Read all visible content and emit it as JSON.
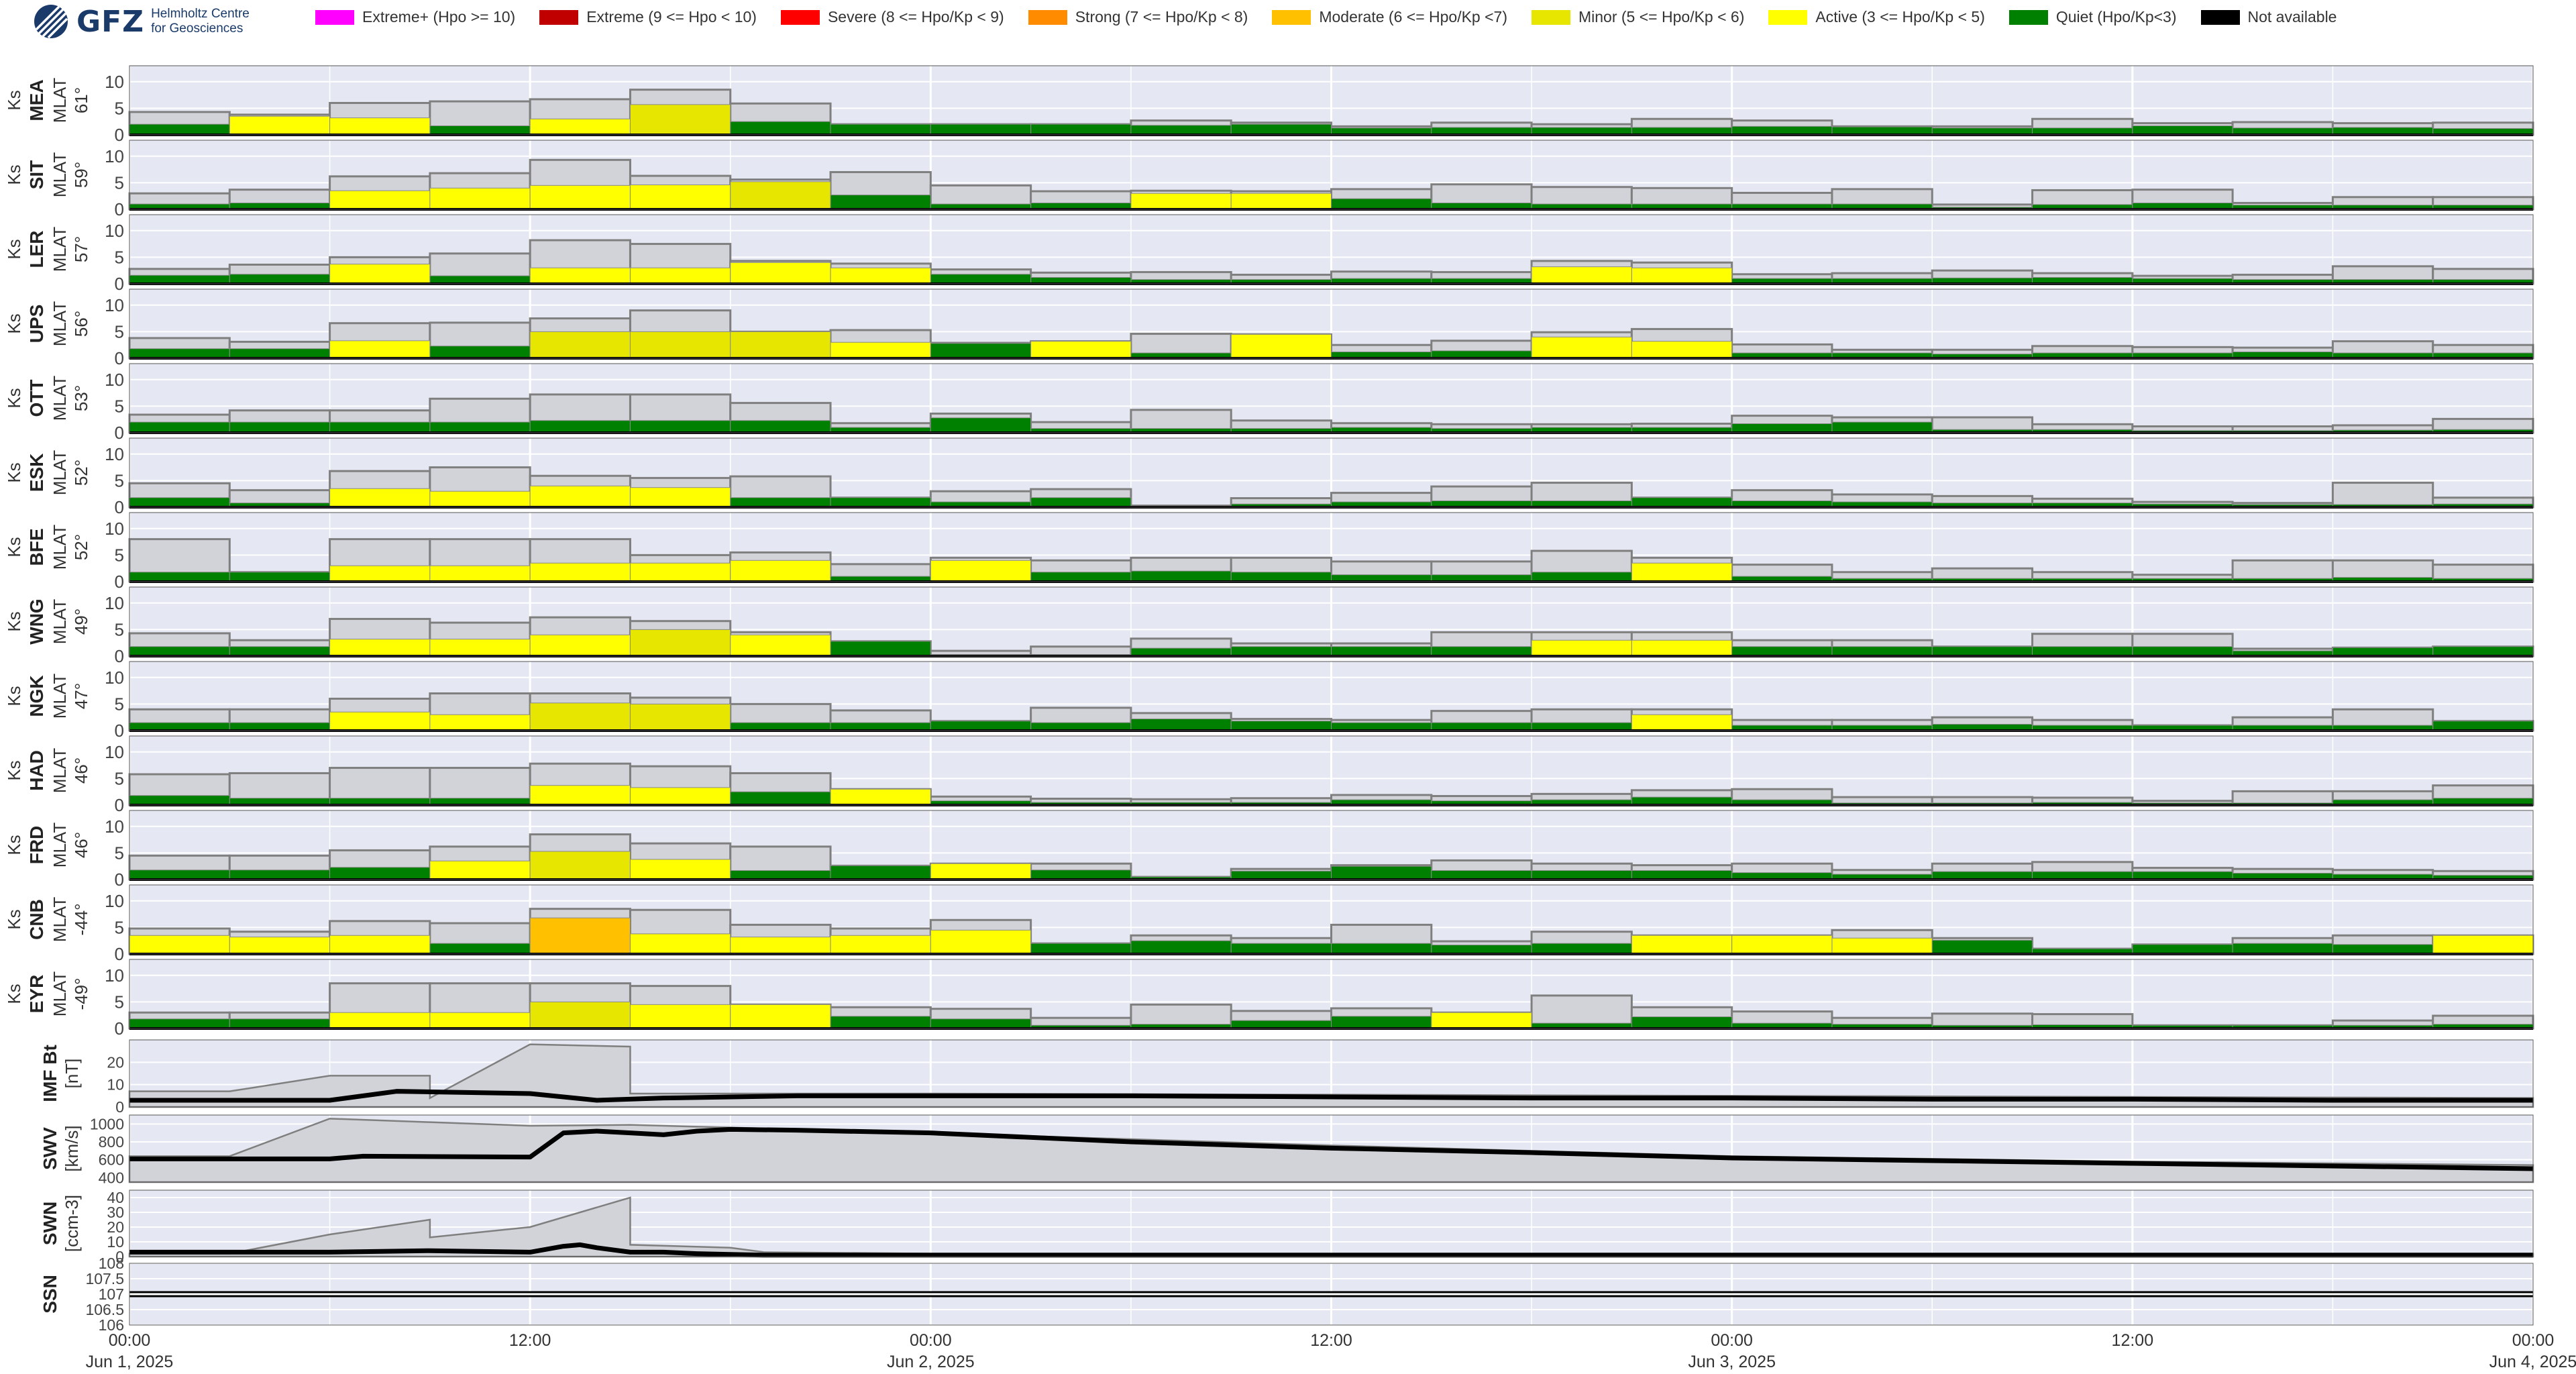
{
  "header": {
    "logo_name": "GFZ",
    "logo_line1": "Helmholtz Centre",
    "logo_line2": "for Geosciences"
  },
  "legend": [
    {
      "label": "Extreme+ (Hpo >= 10)",
      "color": "#ff00ff"
    },
    {
      "label": "Extreme (9 <= Hpo < 10)",
      "color": "#c00000"
    },
    {
      "label": "Severe (8 <= Hpo/Kp < 9)",
      "color": "#ff0000"
    },
    {
      "label": "Strong (7 <= Hpo/Kp < 8)",
      "color": "#ff8c00"
    },
    {
      "label": "Moderate (6 <= Hpo/Kp <7)",
      "color": "#ffc000"
    },
    {
      "label": "Minor (5 <= Hpo/Kp < 6)",
      "color": "#e6e600"
    },
    {
      "label": "Active (3 <= Hpo/Kp < 5)",
      "color": "#ffff00"
    },
    {
      "label": "Quiet (Hpo/Kp<3)",
      "color": "#008000"
    },
    {
      "label": "Not available",
      "color": "#000000"
    }
  ],
  "chart_data": {
    "type": "bar",
    "x_start": "2025-06-01T00:00",
    "x_end": "2025-06-04T00:00",
    "bin_hours": 3,
    "x_tick_labels": [
      "00:00",
      "12:00",
      "00:00",
      "12:00",
      "00:00",
      "12:00",
      "00:00"
    ],
    "x_tick_sublabels": [
      "Jun 1, 2025",
      "",
      "Jun 2, 2025",
      "",
      "Jun 3, 2025",
      "",
      "Jun 4, 2025"
    ],
    "ks_ylim": [
      0,
      13
    ],
    "ks_yticks": [
      0,
      5,
      10
    ],
    "stations": [
      {
        "code": "MEA",
        "mlat": "61°",
        "ylabel": "Ks",
        "sublabel": "MLAT",
        "values": [
          2.0,
          3.5,
          3.2,
          1.7,
          3.0,
          5.7,
          2.5,
          2.0,
          2.0,
          2.0,
          1.8,
          2.0,
          1.3,
          1.4,
          1.4,
          1.4,
          1.6,
          1.5,
          1.3,
          1.3,
          1.7,
          1.3,
          1.4,
          1.2
        ],
        "maxima": [
          4.3,
          3.8,
          6.0,
          6.3,
          6.7,
          8.5,
          5.9,
          2.0,
          2.0,
          2.0,
          2.7,
          2.3,
          1.6,
          2.3,
          2.0,
          3.0,
          2.7,
          1.6,
          1.6,
          3.0,
          2.2,
          2.4,
          2.2,
          2.3
        ]
      },
      {
        "code": "SIT",
        "mlat": "59°",
        "ylabel": "Ks",
        "sublabel": "MLAT",
        "values": [
          1.0,
          1.2,
          3.5,
          4.0,
          4.5,
          4.6,
          5.2,
          2.7,
          1.0,
          1.2,
          3.0,
          3.0,
          2.0,
          1.2,
          1.0,
          1.0,
          1.0,
          1.0,
          0.4,
          0.9,
          1.2,
          0.8,
          0.8,
          0.8
        ],
        "maxima": [
          3.0,
          3.7,
          6.2,
          6.8,
          9.3,
          6.3,
          5.6,
          7.0,
          4.5,
          3.4,
          3.5,
          3.4,
          3.8,
          4.7,
          4.2,
          4.0,
          3.1,
          3.8,
          0.9,
          3.6,
          3.7,
          1.2,
          2.3,
          2.3
        ]
      },
      {
        "code": "LER",
        "mlat": "57°",
        "ylabel": "Ks",
        "sublabel": "MLAT",
        "values": [
          1.6,
          1.8,
          3.7,
          1.5,
          3.0,
          3.0,
          4.0,
          3.0,
          1.8,
          1.2,
          0.8,
          0.8,
          1.0,
          1.0,
          3.2,
          3.0,
          1.0,
          1.0,
          1.1,
          1.2,
          1.0,
          0.8,
          0.8,
          0.8
        ],
        "maxima": [
          2.8,
          3.6,
          5.0,
          5.7,
          8.2,
          7.5,
          4.3,
          3.8,
          2.7,
          2.1,
          2.2,
          1.7,
          2.3,
          2.2,
          4.3,
          4.0,
          1.8,
          2.0,
          2.5,
          2.0,
          1.5,
          1.7,
          3.3,
          2.8
        ]
      },
      {
        "code": "UPS",
        "mlat": "56°",
        "ylabel": "Ks",
        "sublabel": "MLAT",
        "values": [
          1.8,
          1.8,
          3.3,
          2.3,
          5.0,
          5.0,
          5.0,
          3.0,
          2.8,
          3.2,
          1.0,
          4.5,
          1.2,
          1.4,
          4.0,
          3.2,
          1.0,
          1.0,
          0.8,
          1.0,
          1.0,
          1.2,
          1.0,
          1.0
        ],
        "maxima": [
          3.8,
          3.1,
          6.6,
          6.7,
          7.5,
          9.0,
          5.0,
          5.3,
          2.9,
          3.2,
          4.6,
          4.5,
          2.5,
          3.3,
          4.9,
          5.5,
          2.6,
          1.6,
          1.6,
          2.3,
          2.1,
          2.0,
          3.2,
          2.5
        ]
      },
      {
        "code": "OTT",
        "mlat": "53°",
        "ylabel": "Ks",
        "sublabel": "MLAT",
        "values": [
          2.0,
          2.0,
          2.0,
          2.0,
          2.3,
          2.3,
          2.3,
          1.0,
          2.8,
          0.8,
          0.8,
          0.8,
          1.0,
          0.8,
          1.0,
          1.0,
          1.7,
          2.0,
          0.6,
          0.6,
          0.4,
          0.4,
          0.5,
          0.6
        ],
        "maxima": [
          3.4,
          4.2,
          4.2,
          6.4,
          7.2,
          7.2,
          5.6,
          1.8,
          3.6,
          2.0,
          4.3,
          2.3,
          1.8,
          1.6,
          1.6,
          1.7,
          3.2,
          2.9,
          2.9,
          1.6,
          1.2,
          1.2,
          1.4,
          2.6
        ]
      },
      {
        "code": "ESK",
        "mlat": "52°",
        "ylabel": "Ks",
        "sublabel": "MLAT",
        "values": [
          1.8,
          0.8,
          3.5,
          3.0,
          4.0,
          3.7,
          1.8,
          1.8,
          1.0,
          1.8,
          0.3,
          0.6,
          1.0,
          1.2,
          1.2,
          1.8,
          1.2,
          1.0,
          0.8,
          0.8,
          0.6,
          0.5,
          0.5,
          0.6
        ],
        "maxima": [
          4.5,
          3.2,
          6.8,
          7.5,
          5.9,
          5.5,
          5.8,
          1.8,
          3.0,
          3.4,
          0.3,
          1.7,
          2.7,
          3.9,
          4.6,
          1.8,
          3.2,
          2.4,
          2.1,
          1.6,
          1.0,
          0.8,
          4.6,
          1.8
        ]
      },
      {
        "code": "BFE",
        "mlat": "52°",
        "ylabel": "Ks",
        "sublabel": "MLAT",
        "values": [
          1.8,
          1.8,
          3.0,
          3.0,
          3.5,
          3.5,
          4.0,
          1.0,
          4.0,
          1.8,
          2.0,
          1.8,
          1.3,
          1.3,
          1.8,
          3.5,
          1.0,
          0.6,
          0.6,
          0.6,
          0.6,
          0.6,
          0.8,
          0.6
        ],
        "maxima": [
          8.0,
          1.8,
          8.0,
          8.0,
          8.0,
          5.0,
          5.5,
          3.3,
          4.5,
          4.0,
          4.5,
          4.5,
          3.8,
          3.8,
          5.8,
          4.5,
          3.2,
          1.8,
          2.5,
          1.8,
          1.3,
          4.0,
          4.0,
          3.2
        ]
      },
      {
        "code": "WNG",
        "mlat": "49°",
        "ylabel": "Ks",
        "sublabel": "MLAT",
        "values": [
          1.8,
          1.8,
          3.2,
          3.2,
          4.0,
          5.0,
          4.0,
          2.8,
          0.3,
          0.3,
          1.5,
          1.8,
          1.8,
          1.8,
          3.0,
          3.0,
          1.8,
          1.8,
          1.8,
          1.8,
          1.8,
          1.0,
          1.6,
          1.8
        ],
        "maxima": [
          4.3,
          3.0,
          7.0,
          6.3,
          7.3,
          6.6,
          4.5,
          2.8,
          1.0,
          1.8,
          3.3,
          2.4,
          2.4,
          4.5,
          4.5,
          4.5,
          3.0,
          3.0,
          1.8,
          4.2,
          4.2,
          1.4,
          1.6,
          1.8
        ]
      },
      {
        "code": "NGK",
        "mlat": "47°",
        "ylabel": "Ks",
        "sublabel": "MLAT",
        "values": [
          1.5,
          1.5,
          3.5,
          3.0,
          5.2,
          5.0,
          1.5,
          1.5,
          1.8,
          1.5,
          2.2,
          1.8,
          1.5,
          1.5,
          1.5,
          3.0,
          1.0,
          1.0,
          1.2,
          1.0,
          1.0,
          1.0,
          1.0,
          1.8
        ],
        "maxima": [
          4.0,
          4.0,
          6.0,
          7.0,
          7.0,
          6.2,
          5.0,
          3.8,
          1.8,
          4.3,
          3.3,
          2.2,
          2.0,
          3.7,
          4.0,
          4.0,
          2.0,
          2.0,
          2.5,
          2.0,
          1.0,
          2.5,
          4.0,
          1.8
        ]
      },
      {
        "code": "HAD",
        "mlat": "46°",
        "ylabel": "Ks",
        "sublabel": "MLAT",
        "values": [
          1.8,
          1.3,
          1.3,
          1.3,
          3.7,
          3.3,
          2.5,
          3.0,
          0.8,
          0.5,
          0.5,
          0.5,
          1.0,
          0.8,
          1.0,
          1.5,
          1.0,
          0.4,
          0.4,
          0.5,
          0.4,
          0.4,
          1.0,
          1.3
        ],
        "maxima": [
          5.8,
          6.0,
          7.0,
          7.0,
          7.8,
          7.3,
          6.0,
          3.0,
          1.6,
          1.2,
          1.1,
          1.3,
          1.9,
          1.7,
          2.1,
          2.8,
          3.0,
          1.5,
          1.5,
          1.4,
          0.8,
          2.6,
          2.6,
          3.7
        ]
      },
      {
        "code": "FRD",
        "mlat": "46°",
        "ylabel": "Ks",
        "sublabel": "MLAT",
        "values": [
          1.8,
          1.8,
          2.3,
          3.5,
          5.3,
          3.8,
          1.7,
          2.6,
          3.0,
          1.8,
          0.5,
          1.6,
          2.5,
          1.7,
          1.7,
          1.7,
          1.3,
          1.0,
          1.5,
          1.5,
          1.5,
          1.2,
          1.0,
          0.8
        ],
        "maxima": [
          4.5,
          4.5,
          5.5,
          6.2,
          8.5,
          6.8,
          6.2,
          2.6,
          3.0,
          3.0,
          0.5,
          2.0,
          2.7,
          3.6,
          3.0,
          2.7,
          3.0,
          1.8,
          3.0,
          3.3,
          2.2,
          2.0,
          1.8,
          1.6
        ]
      },
      {
        "code": "CNB",
        "mlat": "-44°",
        "ylabel": "Ks",
        "sublabel": "MLAT",
        "values": [
          3.5,
          3.2,
          3.5,
          2.0,
          6.8,
          3.8,
          3.2,
          3.5,
          4.5,
          2.0,
          2.5,
          2.0,
          2.0,
          1.7,
          2.0,
          3.5,
          3.5,
          3.0,
          2.6,
          1.0,
          1.8,
          2.0,
          1.8,
          3.5
        ],
        "maxima": [
          4.8,
          4.2,
          6.2,
          5.8,
          8.5,
          8.3,
          5.5,
          4.8,
          6.4,
          2.0,
          3.5,
          3.0,
          5.5,
          2.4,
          4.2,
          3.5,
          3.5,
          4.5,
          3.0,
          1.0,
          1.8,
          3.0,
          3.5,
          3.5
        ]
      },
      {
        "code": "EYR",
        "mlat": "-49°",
        "ylabel": "Ks",
        "sublabel": "MLAT",
        "values": [
          1.8,
          1.8,
          3.0,
          3.0,
          5.0,
          4.5,
          4.5,
          2.3,
          1.8,
          0.6,
          0.8,
          1.5,
          2.3,
          3.0,
          1.0,
          2.2,
          1.0,
          0.8,
          0.6,
          0.7,
          0.6,
          0.6,
          0.6,
          0.8
        ],
        "maxima": [
          3.0,
          3.0,
          8.5,
          8.5,
          8.5,
          8.0,
          4.5,
          4.0,
          3.7,
          2.0,
          4.5,
          3.3,
          3.8,
          3.0,
          6.2,
          4.0,
          3.2,
          2.0,
          2.8,
          2.7,
          0.6,
          0.6,
          1.5,
          2.4
        ]
      }
    ],
    "solar_wind": [
      {
        "label": "IMF Bt",
        "unit": "[nT]",
        "ylim": [
          0,
          30
        ],
        "yticks": [
          0,
          10,
          20
        ],
        "line_x_hours": [
          0,
          6,
          8,
          12,
          14,
          16,
          20,
          24,
          30,
          36,
          42,
          48,
          54,
          60,
          66,
          72
        ],
        "line_y": [
          3,
          3,
          7,
          6,
          3,
          4,
          5,
          5,
          5,
          4.5,
          4,
          4,
          3.5,
          3.5,
          3,
          3
        ],
        "env_x_hours": [
          0,
          3,
          6,
          9,
          9,
          12,
          15,
          15,
          18,
          24,
          36,
          48,
          60,
          72
        ],
        "env_y": [
          7,
          7,
          14,
          14,
          4,
          28,
          27,
          6,
          6,
          6,
          5.5,
          5,
          4.5,
          4
        ]
      },
      {
        "label": "SWV",
        "unit": "[km/s]",
        "ylim": [
          350,
          1100
        ],
        "yticks": [
          400,
          600,
          800,
          1000
        ],
        "line_x_hours": [
          0,
          6,
          7,
          12,
          13,
          14,
          15,
          16,
          17,
          18,
          20,
          24,
          30,
          36,
          42,
          48,
          54,
          60,
          66,
          72
        ],
        "line_y": [
          610,
          610,
          640,
          630,
          900,
          920,
          900,
          880,
          920,
          940,
          930,
          900,
          800,
          730,
          680,
          620,
          590,
          560,
          530,
          500
        ],
        "env_x_hours": [
          0,
          3,
          6,
          9,
          12,
          15,
          18,
          24,
          36,
          48,
          60,
          72
        ],
        "env_y": [
          640,
          640,
          1060,
          1020,
          980,
          990,
          960,
          900,
          760,
          640,
          580,
          540
        ]
      },
      {
        "label": "SWN",
        "unit": "[ccm-3]",
        "ylim": [
          0,
          45
        ],
        "yticks": [
          0,
          10,
          20,
          30,
          40
        ],
        "line_x_hours": [
          0,
          6,
          9,
          12,
          13,
          13.5,
          14,
          15,
          16,
          17,
          18,
          19,
          24,
          36,
          48,
          60,
          72
        ],
        "line_y": [
          3,
          3,
          4,
          3,
          7,
          8,
          6,
          3,
          3,
          2,
          1.5,
          1,
          1,
          1,
          1,
          1,
          1
        ],
        "env_x_hours": [
          0,
          3,
          6,
          9,
          9,
          12,
          15,
          15,
          18,
          19,
          24,
          72
        ],
        "env_y": [
          2,
          2,
          15,
          25,
          13,
          20,
          40,
          8,
          6,
          3,
          2,
          2
        ]
      },
      {
        "label": "SSN",
        "unit": "",
        "ylim": [
          106,
          108
        ],
        "yticks": [
          106,
          106.5,
          107,
          107.5,
          108
        ],
        "line_x_hours": [
          0,
          72
        ],
        "line_y": [
          107,
          107
        ],
        "env_x_hours": [],
        "env_y": []
      }
    ]
  }
}
